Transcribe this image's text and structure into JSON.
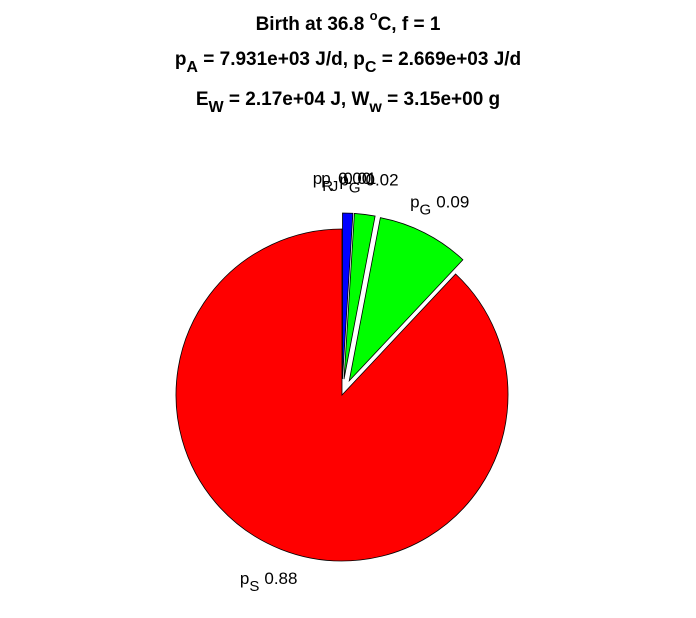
{
  "chart_data": {
    "type": "pie",
    "title": [
      [
        {
          "t": "Birth at 36.8 "
        },
        {
          "t": "o",
          "sup": true
        },
        {
          "t": "C, f = 1"
        }
      ],
      [
        {
          "t": "p"
        },
        {
          "t": "A",
          "sub": true
        },
        {
          "t": " = 7.931e+03 J/d, p"
        },
        {
          "t": "C",
          "sub": true
        },
        {
          "t": " = 2.669e+03 J/d"
        }
      ],
      [
        {
          "t": "E"
        },
        {
          "t": "W",
          "sub": true
        },
        {
          "t": " = 2.17e+04 J, W"
        },
        {
          "t": "w",
          "sub": true
        },
        {
          "t": " = 3.15e+00 g"
        }
      ]
    ],
    "label_prefix": "p",
    "categories": [
      "R",
      "J",
      "G",
      "G",
      "S"
    ],
    "values": [
      0,
      0.01,
      0.02,
      0.09,
      0.88
    ],
    "value_labels": [
      "0.00",
      "0.01",
      "0.02",
      "0.09",
      "0.88"
    ],
    "colors": [
      "#000080",
      "#0000ff",
      "#00ff00",
      "#00ff00",
      "#ff0000"
    ],
    "explode": [
      true,
      true,
      true,
      true,
      false
    ]
  }
}
